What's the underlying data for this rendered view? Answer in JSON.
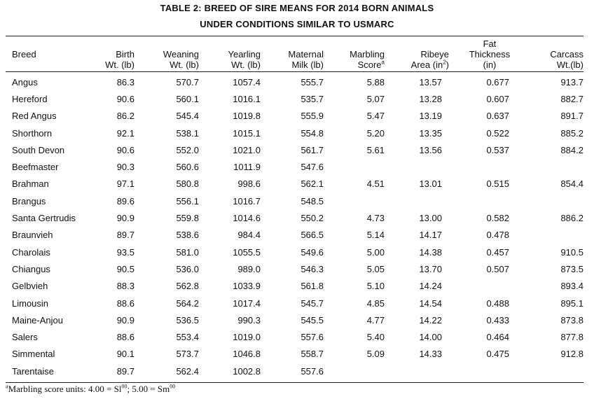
{
  "title": {
    "line1": "TABLE 2: BREED OF SIRE MEANS FOR 2014 BORN ANIMALS",
    "line2": "UNDER CONDITIONS SIMILAR TO USMARC"
  },
  "headers": {
    "breed": "Breed",
    "birth": [
      "Birth",
      "Wt. (lb)"
    ],
    "weaning": [
      "Weaning",
      "Wt. (lb)"
    ],
    "yearling": [
      "Yearling",
      "Wt. (lb)"
    ],
    "milk": [
      "Maternal",
      "Milk (lb)"
    ],
    "marbling": [
      "Marbling",
      "Score",
      "a"
    ],
    "ribeye": [
      "Ribeye",
      "Area (in",
      "2",
      ")"
    ],
    "fat": [
      "Fat",
      "Thickness",
      "(in)"
    ],
    "carcass": [
      "Carcass",
      "Wt.(lb)"
    ]
  },
  "rows": [
    [
      "Angus",
      "86.3",
      "570.7",
      "1057.4",
      "555.7",
      "5.88",
      "13.57",
      "0.677",
      "913.7"
    ],
    [
      "Hereford",
      "90.6",
      "560.1",
      "1016.1",
      "535.7",
      "5.07",
      "13.28",
      "0.607",
      "882.7"
    ],
    [
      "Red Angus",
      "86.2",
      "545.4",
      "1019.8",
      "555.9",
      "5.47",
      "13.19",
      "0.637",
      "891.7"
    ],
    [
      "Shorthorn",
      "92.1",
      "538.1",
      "1015.1",
      "554.8",
      "5.20",
      "13.35",
      "0.522",
      "885.2"
    ],
    [
      "South Devon",
      "90.6",
      "552.0",
      "1021.0",
      "561.7",
      "5.61",
      "13.56",
      "0.537",
      "884.2"
    ],
    [
      "Beefmaster",
      "90.3",
      "560.6",
      "1011.9",
      "547.6",
      "",
      "",
      "",
      ""
    ],
    [
      "Brahman",
      "97.1",
      "580.8",
      "998.6",
      "562.1",
      "4.51",
      "13.01",
      "0.515",
      "854.4"
    ],
    [
      "Brangus",
      "89.6",
      "556.1",
      "1016.7",
      "548.5",
      "",
      "",
      "",
      ""
    ],
    [
      "Santa Gertrudis",
      "90.9",
      "559.8",
      "1014.6",
      "550.2",
      "4.73",
      "13.00",
      "0.582",
      "886.2"
    ],
    [
      "Braunvieh",
      "89.7",
      "538.6",
      "984.4",
      "566.5",
      "5.14",
      "14.17",
      "0.478",
      ""
    ],
    [
      "Charolais",
      "93.5",
      "581.0",
      "1055.5",
      "549.6",
      "5.00",
      "14.38",
      "0.457",
      "910.5"
    ],
    [
      "Chiangus",
      "90.5",
      "536.0",
      "989.0",
      "546.3",
      "5.05",
      "13.70",
      "0.507",
      "873.5"
    ],
    [
      "Gelbvieh",
      "88.3",
      "562.8",
      "1033.9",
      "561.8",
      "5.10",
      "14.24",
      "",
      "893.4"
    ],
    [
      "Limousin",
      "88.6",
      "564.2",
      "1017.4",
      "545.7",
      "4.85",
      "14.54",
      "0.488",
      "895.1"
    ],
    [
      "Maine-Anjou",
      "90.9",
      "536.5",
      "990.3",
      "545.5",
      "4.77",
      "14.22",
      "0.433",
      "873.8"
    ],
    [
      "Salers",
      "88.6",
      "553.4",
      "1019.0",
      "557.6",
      "5.40",
      "14.00",
      "0.464",
      "877.8"
    ],
    [
      "Simmental",
      "90.1",
      "573.7",
      "1046.8",
      "558.7",
      "5.09",
      "14.33",
      "0.475",
      "912.8"
    ],
    [
      "Tarentaise",
      "89.7",
      "562.4",
      "1002.8",
      "557.6",
      "",
      "",
      "",
      ""
    ]
  ],
  "footnote": {
    "mark": "a",
    "text1": "Marbling score units: 4.00 = Sl",
    "sup1": "00",
    "text2": "; 5.00 = Sm",
    "sup2": "00"
  }
}
